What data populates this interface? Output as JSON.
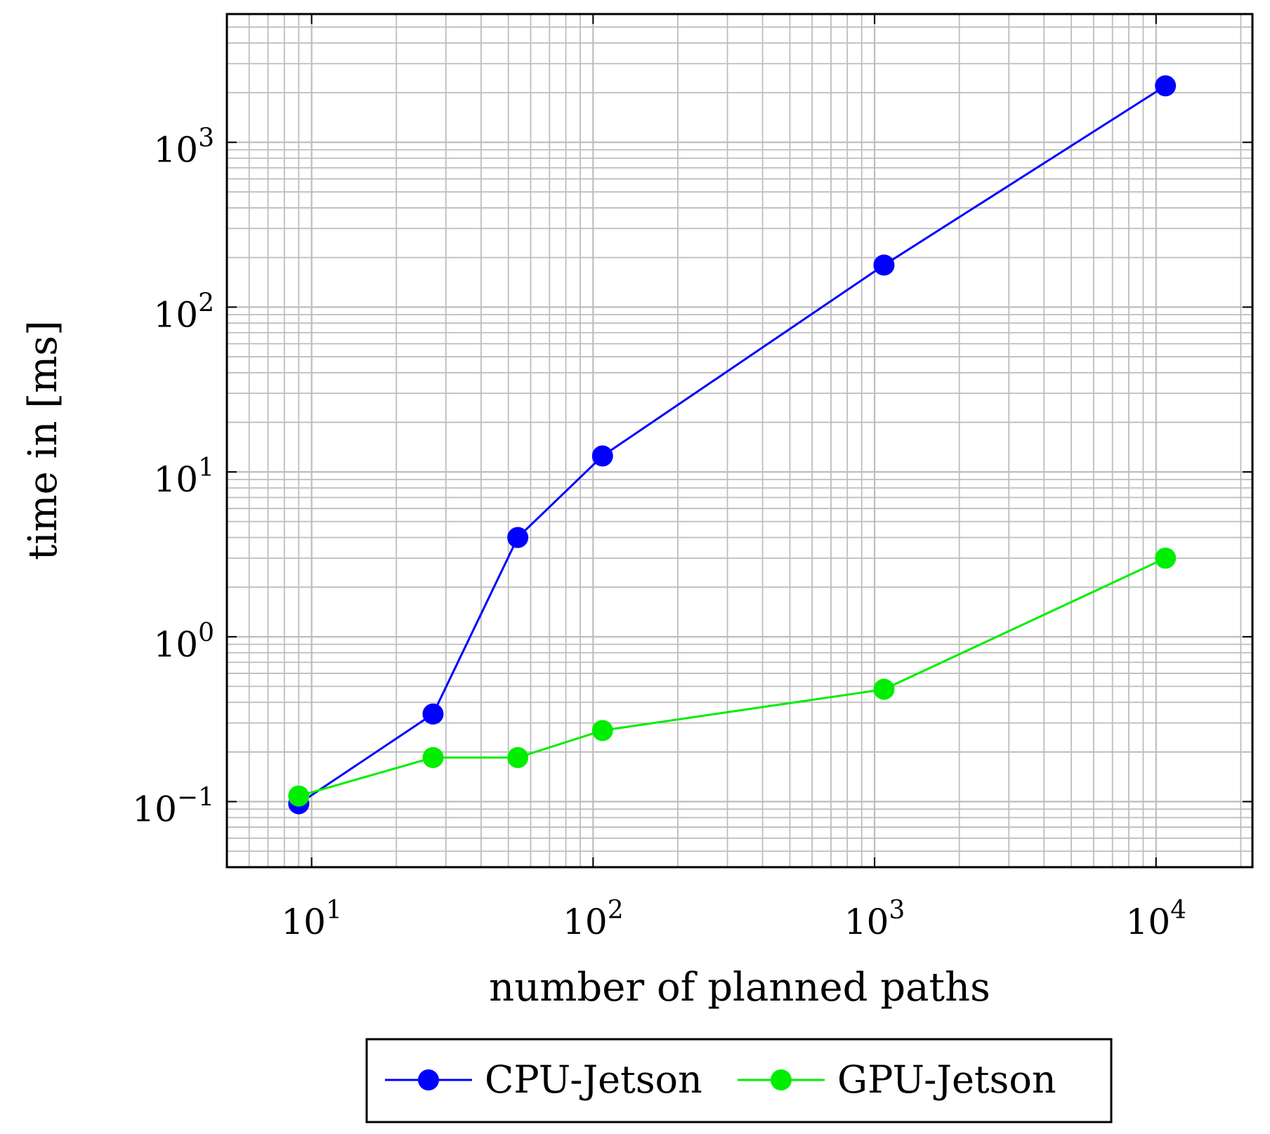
{
  "chart_data": {
    "type": "line",
    "xlabel": "number of planned paths",
    "ylabel": "time in [ms]",
    "x_scale": "log",
    "y_scale": "log",
    "xlim": [
      5,
      22000
    ],
    "ylim": [
      0.04,
      6000
    ],
    "grid": true,
    "x_ticks": [
      {
        "value": 10,
        "base": "10",
        "exp": "1"
      },
      {
        "value": 100,
        "base": "10",
        "exp": "2"
      },
      {
        "value": 1000,
        "base": "10",
        "exp": "3"
      },
      {
        "value": 10000,
        "base": "10",
        "exp": "4"
      }
    ],
    "y_ticks": [
      {
        "value": 0.1,
        "base": "10",
        "exp": "−1"
      },
      {
        "value": 1,
        "base": "10",
        "exp": "0"
      },
      {
        "value": 10,
        "base": "10",
        "exp": "1"
      },
      {
        "value": 100,
        "base": "10",
        "exp": "2"
      },
      {
        "value": 1000,
        "base": "10",
        "exp": "3"
      }
    ],
    "x": [
      9,
      27,
      54,
      108,
      1080,
      10800
    ],
    "series": [
      {
        "name": "CPU-Jetson",
        "color": "#0000ff",
        "values": [
          0.097,
          0.34,
          4.0,
          12.5,
          180,
          2200
        ]
      },
      {
        "name": "GPU-Jetson",
        "color": "#00ee00",
        "values": [
          0.108,
          0.185,
          0.185,
          0.27,
          0.48,
          3.0
        ]
      }
    ],
    "legend_position": "bottom-center"
  }
}
